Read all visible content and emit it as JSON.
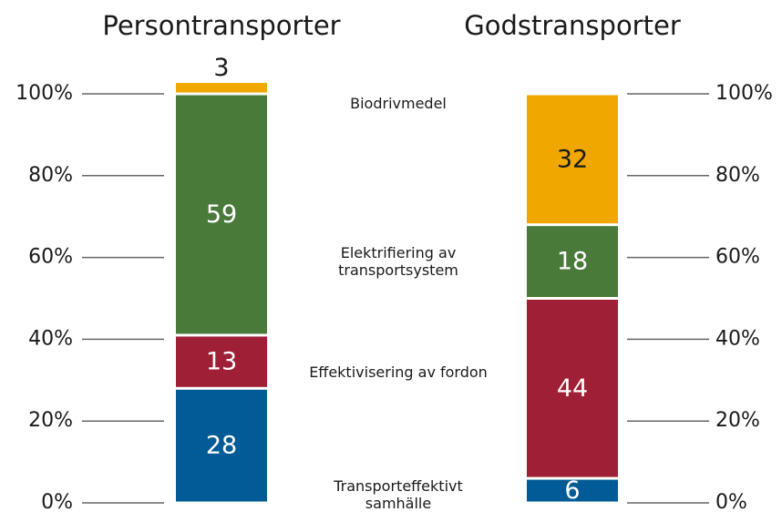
{
  "chart_data": {
    "type": "stacked_bar",
    "categories": [
      "Persontransporter",
      "Godstransporter"
    ],
    "series": [
      {
        "name": "Transporteffektivt samhälle",
        "color": "#005b96",
        "values": [
          28,
          6
        ]
      },
      {
        "name": "Effektivisering av fordon",
        "color": "#9e1f36",
        "values": [
          13,
          44
        ]
      },
      {
        "name": "Elektrifiering av transportsystem",
        "color": "#4a7a3a",
        "values": [
          59,
          18
        ]
      },
      {
        "name": "Biodrivmedel",
        "color": "#f0a800",
        "values": [
          3,
          32
        ]
      }
    ],
    "ylim": [
      0,
      100
    ],
    "yticks": [
      {
        "value": 0,
        "label": "0%"
      },
      {
        "value": 20,
        "label": "20%"
      },
      {
        "value": 40,
        "label": "40%"
      },
      {
        "value": 60,
        "label": "60%"
      },
      {
        "value": 80,
        "label": "80%"
      },
      {
        "value": 100,
        "label": "100%"
      }
    ]
  }
}
